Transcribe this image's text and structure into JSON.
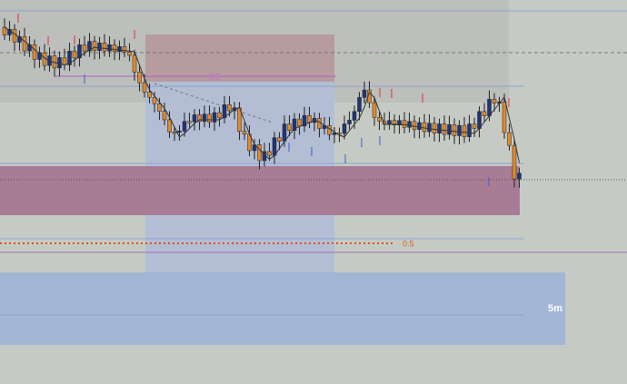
{
  "labels": {
    "order_flow": "OE",
    "level": "0.5",
    "timeframe": "5m"
  }
}
